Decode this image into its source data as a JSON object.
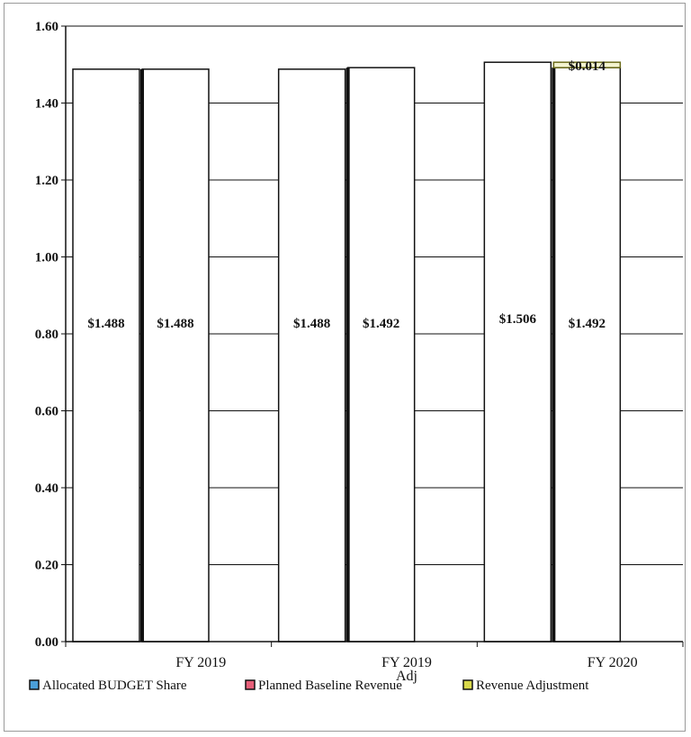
{
  "chart_data": {
    "type": "bar",
    "title": "",
    "xlabel": "",
    "ylabel": "",
    "ylim": [
      0,
      1.6
    ],
    "yticks": [
      "0.00",
      "0.20",
      "0.40",
      "0.60",
      "0.80",
      "1.00",
      "1.20",
      "1.40",
      "1.60"
    ],
    "categories": [
      {
        "line1": "FY 2019",
        "line2": ""
      },
      {
        "line1": "FY 2019",
        "line2": "Adj"
      },
      {
        "line1": "FY 2020",
        "line2": ""
      }
    ],
    "bars": [
      {
        "category": 0,
        "slot": 0,
        "segments": [
          {
            "series": 0,
            "value": 1.488,
            "label": "$1.488"
          }
        ]
      },
      {
        "category": 0,
        "slot": 1,
        "segments": [
          {
            "series": 1,
            "value": 1.488,
            "label": "$1.488"
          }
        ]
      },
      {
        "category": 1,
        "slot": 0,
        "segments": [
          {
            "series": 0,
            "value": 1.488,
            "label": "$1.488"
          }
        ]
      },
      {
        "category": 1,
        "slot": 1,
        "segments": [
          {
            "series": 1,
            "value": 1.492,
            "label": "$1.492"
          }
        ]
      },
      {
        "category": 2,
        "slot": 0,
        "segments": [
          {
            "series": 0,
            "value": 1.506,
            "label": "$1.506"
          }
        ]
      },
      {
        "category": 2,
        "slot": 1,
        "segments": [
          {
            "series": 1,
            "value": 1.492,
            "label": "$1.492"
          },
          {
            "series": 2,
            "value": 0.014,
            "label": "$0.014"
          }
        ]
      }
    ],
    "series": [
      {
        "name": "Allocated BUDGET Share",
        "color": "#4a9fd8"
      },
      {
        "name": "Planned Baseline Revenue",
        "color": "#e8607a"
      },
      {
        "name": "Revenue Adjustment",
        "color": "#d8d84a"
      }
    ],
    "bar_fill": "#ffffff",
    "bar_stroke": "#111111",
    "grid": true,
    "legend_position": "bottom"
  }
}
